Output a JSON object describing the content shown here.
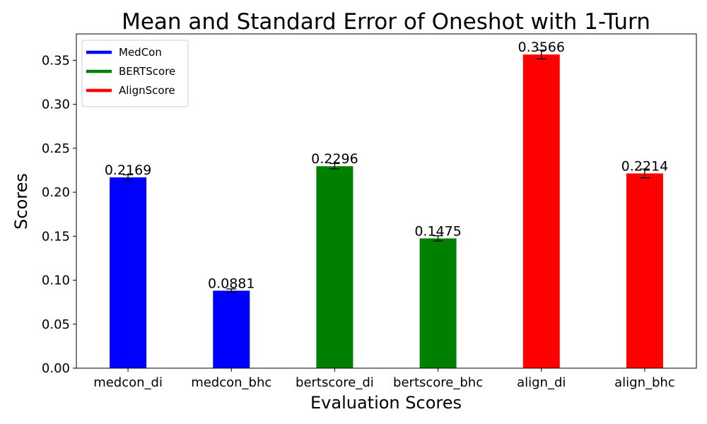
{
  "chart_data": {
    "type": "bar",
    "title": "Mean and Standard Error of Oneshot with 1-Turn",
    "xlabel": "Evaluation Scores",
    "ylabel": "Scores",
    "categories": [
      "medcon_di",
      "medcon_bhc",
      "bertscore_di",
      "bertscore_bhc",
      "align_di",
      "align_bhc"
    ],
    "values": [
      0.2169,
      0.0881,
      0.2296,
      0.1475,
      0.3566,
      0.2214
    ],
    "value_labels": [
      "0.2169",
      "0.0881",
      "0.2296",
      "0.1475",
      "0.3566",
      "0.2214"
    ],
    "errors": [
      0.003,
      0.002,
      0.003,
      0.003,
      0.005,
      0.005
    ],
    "bar_colors": [
      "#0000ff",
      "#0000ff",
      "#008000",
      "#008000",
      "#ff0000",
      "#ff0000"
    ],
    "ylim": [
      0,
      0.38
    ],
    "yticks": [
      0.0,
      0.05,
      0.1,
      0.15,
      0.2,
      0.25,
      0.3,
      0.35
    ],
    "ytick_labels": [
      "0.00",
      "0.05",
      "0.10",
      "0.15",
      "0.20",
      "0.25",
      "0.30",
      "0.35"
    ],
    "grid": false,
    "legend": {
      "placement": "top-left",
      "entries": [
        {
          "label": "MedCon",
          "color": "#0000ff"
        },
        {
          "label": "BERTScore",
          "color": "#008000"
        },
        {
          "label": "AlignScore",
          "color": "#ff0000"
        }
      ]
    }
  }
}
